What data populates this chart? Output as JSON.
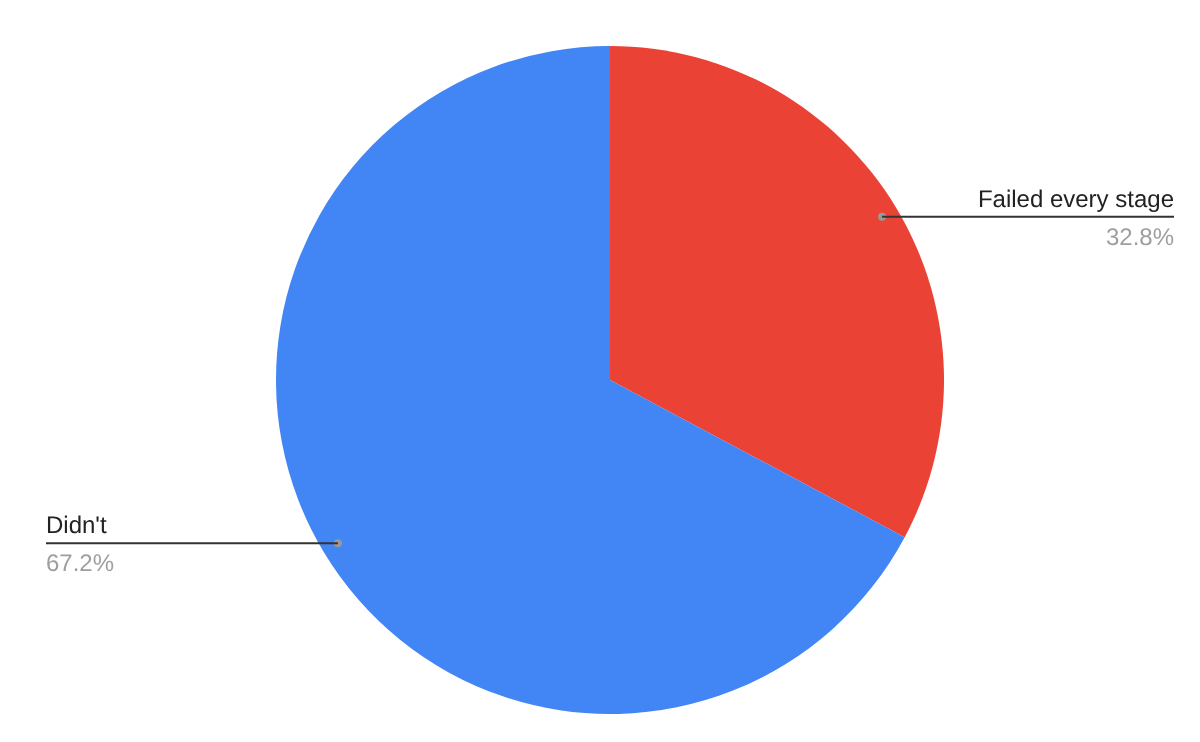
{
  "chart_data": {
    "type": "pie",
    "categories": [
      "Failed every stage",
      "Didn't"
    ],
    "values": [
      32.8,
      67.2
    ],
    "colors": [
      "#ea4335",
      "#4285f4"
    ],
    "value_labels": [
      "32.8%",
      "67.2%"
    ],
    "legend": false
  }
}
